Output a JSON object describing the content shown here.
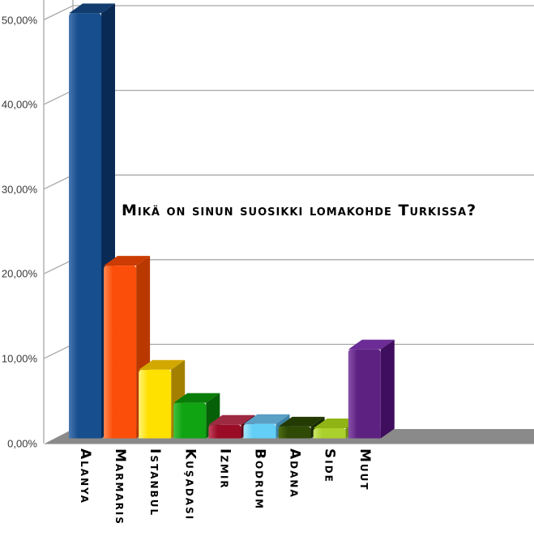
{
  "title": {
    "text": "Mikä on sinun suosikki lomakohde Turkissa?"
  },
  "chart_data": {
    "type": "bar",
    "style": "3d-column",
    "title": "Mikä on sinun suosikki lomakohde Turkissa?",
    "categories": [
      "Alanya",
      "Marmaris",
      "Istanbul",
      "Kuşadası",
      "Izmir",
      "Bodrum",
      "Adana",
      "Side",
      "Muut"
    ],
    "values": [
      50.2,
      20.4,
      8.1,
      4.2,
      1.6,
      1.7,
      1.4,
      1.2,
      10.5
    ],
    "unit": "%",
    "xlabel": "",
    "ylabel": "",
    "ylim": [
      0,
      50
    ],
    "yticks": [
      "0,00%",
      "10,00%",
      "20,00%",
      "30,00%",
      "40,00%",
      "50,00%"
    ],
    "ytick_values": [
      0,
      10,
      20,
      30,
      40,
      50
    ],
    "grid": true,
    "legend": false,
    "gridline_color": "#a8a8a8",
    "axis_color": "#a8a8a8",
    "floor_color": "#8a8a8a",
    "ytick_color": "#383838",
    "label_color": "#000000",
    "bar_colors": [
      {
        "name": "navy-blue",
        "front": "#164E8E",
        "light": "#4878B0",
        "top": "#123C6E",
        "side": "#0A2A56"
      },
      {
        "name": "orange-red",
        "front": "#FB4E0A",
        "light": "#FF8A50",
        "top": "#CC3C02",
        "side": "#B93800"
      },
      {
        "name": "yellow",
        "front": "#FFE100",
        "light": "#FFF27A",
        "top": "#D2A800",
        "side": "#A38000"
      },
      {
        "name": "green",
        "front": "#10A312",
        "light": "#3FBF3F",
        "top": "#087D08",
        "side": "#066008"
      },
      {
        "name": "dark-red",
        "front": "#9A0B26",
        "light": "#C34560",
        "top": "#9E2A42",
        "side": "#650516"
      },
      {
        "name": "sky-blue",
        "front": "#63CFF7",
        "light": "#A8E6FB",
        "top": "#5A9FC4",
        "side": "#3E82A6"
      },
      {
        "name": "dark-olive",
        "front": "#2F4A05",
        "light": "#4F6E14",
        "top": "#243A03",
        "side": "#182A02"
      },
      {
        "name": "lime-green",
        "front": "#AAD02B",
        "light": "#CCE668",
        "top": "#90B414",
        "side": "#6F8F0C"
      },
      {
        "name": "purple",
        "front": "#5D2281",
        "light": "#8951AB",
        "top": "#6B2C95",
        "side": "#3F0E5E"
      }
    ]
  }
}
